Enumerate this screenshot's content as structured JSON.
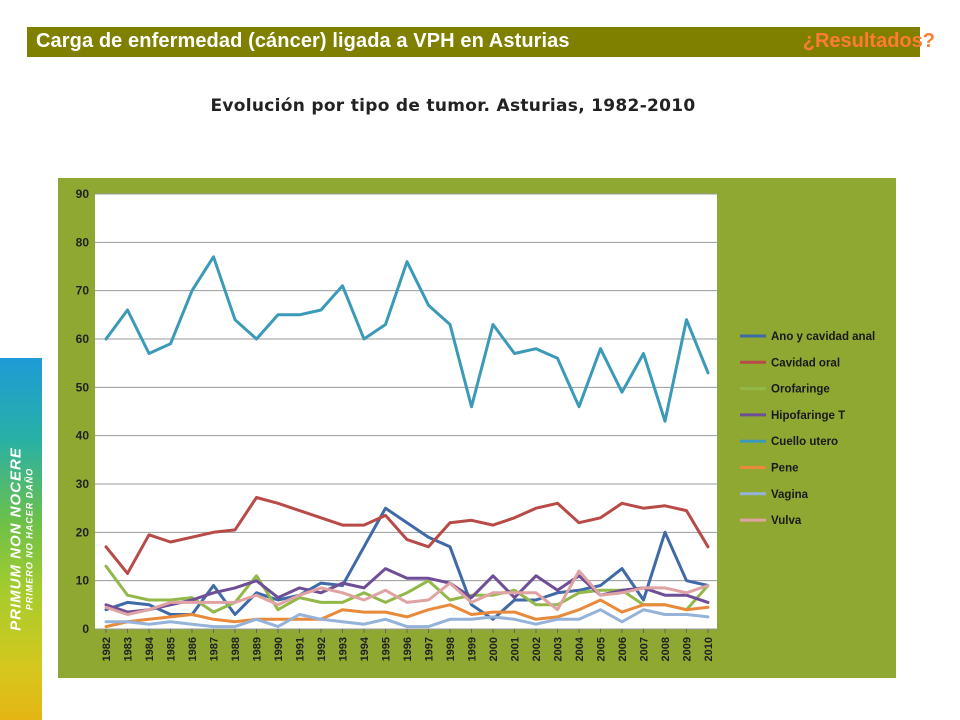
{
  "header": {
    "title": "Carga de enfermedad (cáncer) ligada a VPH en Asturias",
    "results": "¿Resultados?"
  },
  "banner": {
    "line1": "PRIMUM NON NOCERE",
    "line2": "PRIMERO NO HACER DAÑO"
  },
  "colors": {
    "header_bg": "#808000",
    "plot_bg": "#ffffff",
    "chart_bg": "#8fa832"
  },
  "chart_data": {
    "type": "line",
    "title": "Evolución por tipo de tumor. Asturias, 1982-2010",
    "xlabel": "",
    "ylabel": "",
    "ylim": [
      0,
      90
    ],
    "yticks": [
      0,
      10,
      20,
      30,
      40,
      50,
      60,
      70,
      80,
      90
    ],
    "grid": true,
    "legend": "right",
    "categories": [
      "1982",
      "1983",
      "1984",
      "1985",
      "1986",
      "1987",
      "1988",
      "1989",
      "1990",
      "1991",
      "1992",
      "1993",
      "1994",
      "1995",
      "1996",
      "1997",
      "1998",
      "1999",
      "2000",
      "2001",
      "2002",
      "2003",
      "2004",
      "2005",
      "2006",
      "2007",
      "2008",
      "2009",
      "2010"
    ],
    "series": [
      {
        "name": "Ano y cavidad anal",
        "color": "#3f6aa8",
        "values": [
          4,
          5.5,
          5,
          3,
          3,
          9,
          3,
          7.5,
          6,
          7,
          9.5,
          9,
          17,
          25,
          22,
          19,
          17,
          5,
          2,
          6,
          6,
          7.5,
          8,
          9,
          12.5,
          6,
          20,
          10,
          9
        ]
      },
      {
        "name": "Cavidad oral",
        "color": "#b84a48",
        "values": [
          17,
          11.5,
          19.5,
          18,
          19,
          20,
          20.5,
          27.2,
          26,
          24.5,
          23,
          21.5,
          21.5,
          23.5,
          18.5,
          17,
          22,
          22.5,
          21.5,
          23,
          25,
          26,
          22,
          23,
          26,
          25,
          25.5,
          24.5,
          17
        ]
      },
      {
        "name": "Orofaringe",
        "color": "#93b84a",
        "values": [
          13,
          7,
          6,
          6,
          6.5,
          3.5,
          5.5,
          11,
          4,
          6.5,
          5.5,
          5.5,
          7.5,
          5.5,
          7.5,
          10,
          6,
          7,
          7,
          8,
          5,
          5,
          7.5,
          8,
          8,
          5,
          5,
          4,
          9
        ]
      },
      {
        "name": "Hipofaringe T",
        "color": "#6e4e96",
        "values": [
          5,
          3.5,
          4,
          5,
          6,
          7.5,
          8.5,
          10,
          6.5,
          8.5,
          7.5,
          9.5,
          8.5,
          12.5,
          10.5,
          10.5,
          9.5,
          6.5,
          11,
          6.5,
          11,
          8,
          11,
          7,
          8,
          8.5,
          7,
          7,
          5.5
        ]
      },
      {
        "name": "Cuello utero",
        "color": "#3b9ab8",
        "values": [
          60,
          66,
          57,
          59,
          70,
          77,
          64,
          60,
          65,
          65,
          66,
          71,
          60,
          63,
          76,
          67,
          63,
          46,
          63,
          57,
          58,
          56,
          46,
          58,
          49,
          57,
          43,
          64,
          53
        ]
      },
      {
        "name": "Pene",
        "color": "#e88a3a",
        "values": [
          0.5,
          1.5,
          2,
          2.5,
          3,
          2,
          1.5,
          2,
          2,
          2,
          2,
          4,
          3.5,
          3.5,
          2.5,
          4,
          5,
          3,
          3.5,
          3.5,
          2,
          2.5,
          4,
          6,
          3.5,
          5,
          5,
          4,
          4.5
        ]
      },
      {
        "name": "Vagina",
        "color": "#95b2d9",
        "values": [
          1.5,
          1.5,
          1,
          1.5,
          1,
          0.5,
          0.5,
          2,
          0.5,
          3,
          2,
          1.5,
          1,
          2,
          0.5,
          0.5,
          2,
          2,
          2.5,
          2,
          1,
          2,
          2,
          4,
          1.5,
          4,
          3,
          3,
          2.5
        ]
      },
      {
        "name": "Vulva",
        "color": "#e0a3a3",
        "values": [
          4.5,
          3,
          4,
          5.5,
          5.5,
          5.5,
          5.5,
          7,
          5,
          7,
          8.5,
          7.5,
          6,
          8,
          5.5,
          6,
          9.5,
          5.5,
          7.5,
          7.5,
          7.5,
          4,
          12,
          7,
          7.5,
          8.5,
          8.5,
          7.5,
          9
        ]
      }
    ]
  }
}
